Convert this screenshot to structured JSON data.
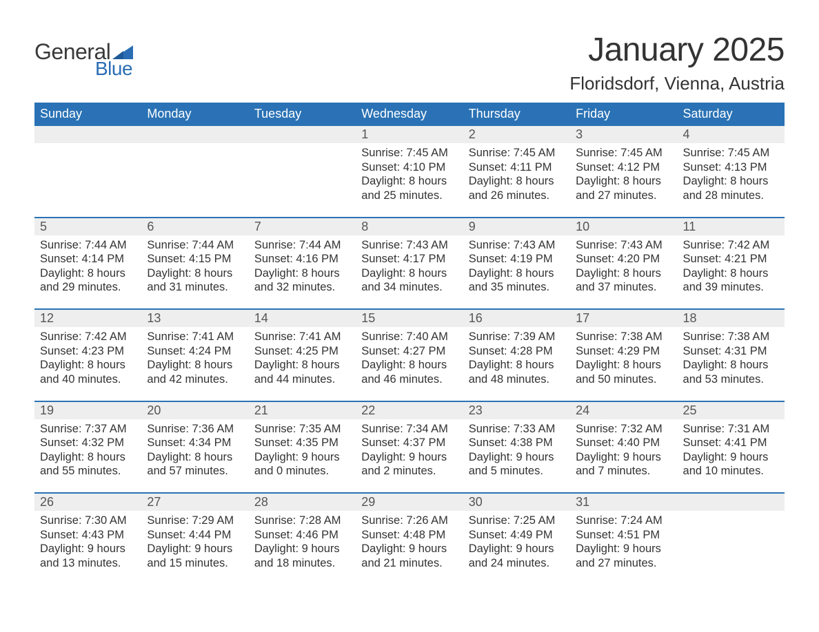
{
  "logo": {
    "general": "General",
    "blue": "Blue"
  },
  "header": {
    "month_title": "January 2025",
    "location": "Floridsdorf, Vienna, Austria"
  },
  "dayNames": [
    "Sunday",
    "Monday",
    "Tuesday",
    "Wednesday",
    "Thursday",
    "Friday",
    "Saturday"
  ],
  "colors": {
    "header_bg": "#2a72b5",
    "week_border": "#2a72b5",
    "daynum_bg": "#eeeeee",
    "text": "#333333",
    "logo_blue": "#2a6db5"
  },
  "weeks": [
    [
      null,
      null,
      null,
      {
        "n": "1",
        "sunrise": "Sunrise: 7:45 AM",
        "sunset": "Sunset: 4:10 PM",
        "d1": "Daylight: 8 hours",
        "d2": "and 25 minutes."
      },
      {
        "n": "2",
        "sunrise": "Sunrise: 7:45 AM",
        "sunset": "Sunset: 4:11 PM",
        "d1": "Daylight: 8 hours",
        "d2": "and 26 minutes."
      },
      {
        "n": "3",
        "sunrise": "Sunrise: 7:45 AM",
        "sunset": "Sunset: 4:12 PM",
        "d1": "Daylight: 8 hours",
        "d2": "and 27 minutes."
      },
      {
        "n": "4",
        "sunrise": "Sunrise: 7:45 AM",
        "sunset": "Sunset: 4:13 PM",
        "d1": "Daylight: 8 hours",
        "d2": "and 28 minutes."
      }
    ],
    [
      {
        "n": "5",
        "sunrise": "Sunrise: 7:44 AM",
        "sunset": "Sunset: 4:14 PM",
        "d1": "Daylight: 8 hours",
        "d2": "and 29 minutes."
      },
      {
        "n": "6",
        "sunrise": "Sunrise: 7:44 AM",
        "sunset": "Sunset: 4:15 PM",
        "d1": "Daylight: 8 hours",
        "d2": "and 31 minutes."
      },
      {
        "n": "7",
        "sunrise": "Sunrise: 7:44 AM",
        "sunset": "Sunset: 4:16 PM",
        "d1": "Daylight: 8 hours",
        "d2": "and 32 minutes."
      },
      {
        "n": "8",
        "sunrise": "Sunrise: 7:43 AM",
        "sunset": "Sunset: 4:17 PM",
        "d1": "Daylight: 8 hours",
        "d2": "and 34 minutes."
      },
      {
        "n": "9",
        "sunrise": "Sunrise: 7:43 AM",
        "sunset": "Sunset: 4:19 PM",
        "d1": "Daylight: 8 hours",
        "d2": "and 35 minutes."
      },
      {
        "n": "10",
        "sunrise": "Sunrise: 7:43 AM",
        "sunset": "Sunset: 4:20 PM",
        "d1": "Daylight: 8 hours",
        "d2": "and 37 minutes."
      },
      {
        "n": "11",
        "sunrise": "Sunrise: 7:42 AM",
        "sunset": "Sunset: 4:21 PM",
        "d1": "Daylight: 8 hours",
        "d2": "and 39 minutes."
      }
    ],
    [
      {
        "n": "12",
        "sunrise": "Sunrise: 7:42 AM",
        "sunset": "Sunset: 4:23 PM",
        "d1": "Daylight: 8 hours",
        "d2": "and 40 minutes."
      },
      {
        "n": "13",
        "sunrise": "Sunrise: 7:41 AM",
        "sunset": "Sunset: 4:24 PM",
        "d1": "Daylight: 8 hours",
        "d2": "and 42 minutes."
      },
      {
        "n": "14",
        "sunrise": "Sunrise: 7:41 AM",
        "sunset": "Sunset: 4:25 PM",
        "d1": "Daylight: 8 hours",
        "d2": "and 44 minutes."
      },
      {
        "n": "15",
        "sunrise": "Sunrise: 7:40 AM",
        "sunset": "Sunset: 4:27 PM",
        "d1": "Daylight: 8 hours",
        "d2": "and 46 minutes."
      },
      {
        "n": "16",
        "sunrise": "Sunrise: 7:39 AM",
        "sunset": "Sunset: 4:28 PM",
        "d1": "Daylight: 8 hours",
        "d2": "and 48 minutes."
      },
      {
        "n": "17",
        "sunrise": "Sunrise: 7:38 AM",
        "sunset": "Sunset: 4:29 PM",
        "d1": "Daylight: 8 hours",
        "d2": "and 50 minutes."
      },
      {
        "n": "18",
        "sunrise": "Sunrise: 7:38 AM",
        "sunset": "Sunset: 4:31 PM",
        "d1": "Daylight: 8 hours",
        "d2": "and 53 minutes."
      }
    ],
    [
      {
        "n": "19",
        "sunrise": "Sunrise: 7:37 AM",
        "sunset": "Sunset: 4:32 PM",
        "d1": "Daylight: 8 hours",
        "d2": "and 55 minutes."
      },
      {
        "n": "20",
        "sunrise": "Sunrise: 7:36 AM",
        "sunset": "Sunset: 4:34 PM",
        "d1": "Daylight: 8 hours",
        "d2": "and 57 minutes."
      },
      {
        "n": "21",
        "sunrise": "Sunrise: 7:35 AM",
        "sunset": "Sunset: 4:35 PM",
        "d1": "Daylight: 9 hours",
        "d2": "and 0 minutes."
      },
      {
        "n": "22",
        "sunrise": "Sunrise: 7:34 AM",
        "sunset": "Sunset: 4:37 PM",
        "d1": "Daylight: 9 hours",
        "d2": "and 2 minutes."
      },
      {
        "n": "23",
        "sunrise": "Sunrise: 7:33 AM",
        "sunset": "Sunset: 4:38 PM",
        "d1": "Daylight: 9 hours",
        "d2": "and 5 minutes."
      },
      {
        "n": "24",
        "sunrise": "Sunrise: 7:32 AM",
        "sunset": "Sunset: 4:40 PM",
        "d1": "Daylight: 9 hours",
        "d2": "and 7 minutes."
      },
      {
        "n": "25",
        "sunrise": "Sunrise: 7:31 AM",
        "sunset": "Sunset: 4:41 PM",
        "d1": "Daylight: 9 hours",
        "d2": "and 10 minutes."
      }
    ],
    [
      {
        "n": "26",
        "sunrise": "Sunrise: 7:30 AM",
        "sunset": "Sunset: 4:43 PM",
        "d1": "Daylight: 9 hours",
        "d2": "and 13 minutes."
      },
      {
        "n": "27",
        "sunrise": "Sunrise: 7:29 AM",
        "sunset": "Sunset: 4:44 PM",
        "d1": "Daylight: 9 hours",
        "d2": "and 15 minutes."
      },
      {
        "n": "28",
        "sunrise": "Sunrise: 7:28 AM",
        "sunset": "Sunset: 4:46 PM",
        "d1": "Daylight: 9 hours",
        "d2": "and 18 minutes."
      },
      {
        "n": "29",
        "sunrise": "Sunrise: 7:26 AM",
        "sunset": "Sunset: 4:48 PM",
        "d1": "Daylight: 9 hours",
        "d2": "and 21 minutes."
      },
      {
        "n": "30",
        "sunrise": "Sunrise: 7:25 AM",
        "sunset": "Sunset: 4:49 PM",
        "d1": "Daylight: 9 hours",
        "d2": "and 24 minutes."
      },
      {
        "n": "31",
        "sunrise": "Sunrise: 7:24 AM",
        "sunset": "Sunset: 4:51 PM",
        "d1": "Daylight: 9 hours",
        "d2": "and 27 minutes."
      },
      null
    ]
  ]
}
